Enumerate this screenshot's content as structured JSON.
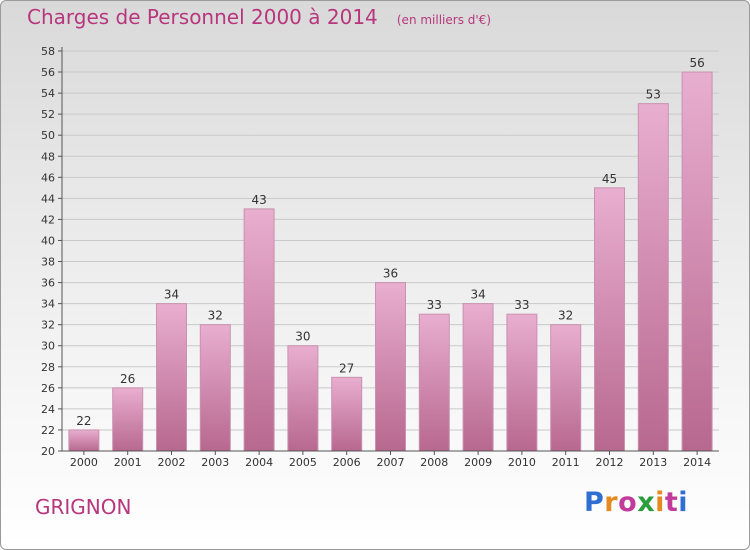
{
  "header": {
    "title": "Charges de Personnel 2000 à 2014",
    "unit": "(en milliers d'€)"
  },
  "footer": {
    "city": "GRIGNON",
    "brand": {
      "text": "Proxiti",
      "letter_colors": [
        "#2f6fd1",
        "#e58a1f",
        "#c23b9a",
        "#2a9d3d",
        "#e58a1f",
        "#c23b9a",
        "#2f6fd1"
      ]
    }
  },
  "colors": {
    "bar_light": "#e8aed0",
    "bar_dark": "#b8688f",
    "bar_edge": "#c992b0",
    "text": "#333333",
    "accent": "#b7367d",
    "grid": "#c9c9c9"
  },
  "chart_data": {
    "type": "bar",
    "title": "Charges de Personnel 2000 à 2014",
    "subtitle": "(en milliers d'€)",
    "xlabel": "",
    "ylabel": "",
    "ylim": [
      20,
      58
    ],
    "ytick_step": 2,
    "grid": true,
    "categories": [
      "2000",
      "2001",
      "2002",
      "2003",
      "2004",
      "2005",
      "2006",
      "2007",
      "2008",
      "2009",
      "2010",
      "2011",
      "2012",
      "2013",
      "2014"
    ],
    "values": [
      22,
      26,
      34,
      32,
      43,
      30,
      27,
      36,
      33,
      34,
      33,
      32,
      45,
      53,
      56
    ]
  }
}
